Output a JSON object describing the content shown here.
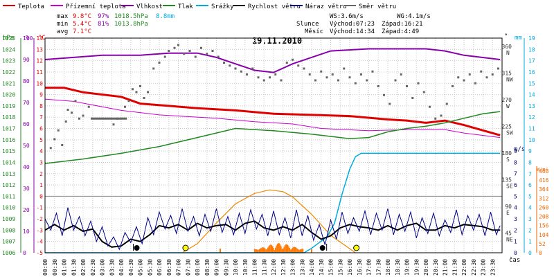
{
  "chart_data": {
    "type": "line",
    "title": "19.11.2010",
    "legend": [
      {
        "label": "Teplota",
        "color": "#e00000"
      },
      {
        "label": "Přízemní teplota",
        "color": "#cc00cc"
      },
      {
        "label": "Vlhkost",
        "color": "#8800aa"
      },
      {
        "label": "Tlak",
        "color": "#228822"
      },
      {
        "label": "Srážky",
        "color": "#00aadd"
      },
      {
        "label": "Rychlost větru",
        "color": "#000000"
      },
      {
        "label": "Náraz větru",
        "color": "#000088"
      },
      {
        "label": "Směr větru",
        "color": "#666666"
      }
    ],
    "stats": {
      "max": {
        "label": "max",
        "temp": "9.8°C",
        "hum": "97%",
        "press": "1018.5hPa",
        "rain": "8.8mm"
      },
      "min": {
        "label": "min",
        "temp": "5.4°C",
        "hum": "81%",
        "press": "1013.8hPa"
      },
      "avg": {
        "label": "avg",
        "temp": "7.1°C"
      },
      "ws": "WS:3.6m/s",
      "wg": "WG:4.1m/s",
      "sun": {
        "label": "Slunce",
        "rise": "Východ:07:23",
        "set": "Západ:16:21"
      },
      "moon": {
        "label": "Měsíc",
        "rise": "Východ:14:34",
        "set": "Západ:4:49"
      }
    },
    "axes": {
      "hpa": {
        "unit": "hPa",
        "range": [
          1006,
          1025
        ],
        "color": "#228822"
      },
      "pct": {
        "unit": "%",
        "range": [
          0,
          100
        ],
        "color": "#8800aa"
      },
      "temp": {
        "unit": "°C",
        "range": [
          -5,
          14
        ],
        "color": "#e00000"
      },
      "dir": {
        "unit": "°",
        "ticks": [
          {
            "deg": "360",
            "name": "N"
          },
          {
            "deg": "315",
            "name": "NW"
          },
          {
            "deg": "270",
            "name": "W"
          },
          {
            "deg": "225",
            "name": "SW"
          },
          {
            "deg": "180",
            "name": "S"
          },
          {
            "deg": "135",
            "name": "SE"
          },
          {
            "deg": "90",
            "name": "E"
          },
          {
            "deg": "45",
            "name": "NE"
          }
        ]
      },
      "mm": {
        "unit": "mm",
        "range": [
          0,
          19
        ],
        "color": "#00aadd"
      },
      "ms": {
        "unit": "m/s",
        "range": [
          0,
          9
        ],
        "color": "#000066"
      },
      "wm2": {
        "unit": "W/m²",
        "ticks": [
          468,
          416,
          364,
          312,
          260,
          208,
          156,
          104,
          52,
          0
        ],
        "color": "#ee6600"
      },
      "x": {
        "label": "čas"
      }
    },
    "time_labels": [
      "00:00",
      "00:30",
      "01:00",
      "01:30",
      "02:00",
      "02:30",
      "03:00",
      "03:30",
      "04:00",
      "04:30",
      "05:00",
      "05:30",
      "06:00",
      "06:30",
      "07:00",
      "07:30",
      "08:00",
      "08:30",
      "09:00",
      "09:30",
      "10:00",
      "10:30",
      "11:00",
      "11:30",
      "12:00",
      "12:30",
      "13:00",
      "13:30",
      "14:00",
      "14:30",
      "15:00",
      "15:30",
      "16:00",
      "16:30",
      "17:00",
      "17:30",
      "18:00",
      "18:30",
      "19:00",
      "19:30",
      "20:00",
      "20:30",
      "21:00",
      "21:30",
      "22:00",
      "22:30",
      "23:00",
      "23:30"
    ],
    "series": [
      {
        "name": "Teplota",
        "axis": "temp",
        "x": [
          0,
          1,
          2,
          4,
          5,
          8,
          10,
          12,
          14,
          16,
          18,
          19,
          20,
          21,
          22,
          23.9
        ],
        "values": [
          9.6,
          9.6,
          9.2,
          8.8,
          8.2,
          7.8,
          7.6,
          7.3,
          7.2,
          7.1,
          6.8,
          6.7,
          6.5,
          6.7,
          6.3,
          5.4
        ]
      },
      {
        "name": "Přízemní teplota",
        "axis": "temp",
        "x": [
          0,
          1.5,
          4,
          6,
          9,
          11,
          13,
          14.5,
          17,
          19,
          21,
          22,
          23.9
        ],
        "values": [
          8.6,
          8.4,
          7.6,
          7.2,
          6.9,
          6.6,
          6.4,
          6.0,
          5.8,
          5.9,
          5.9,
          5.6,
          5.2
        ]
      },
      {
        "name": "Vlhkost",
        "axis": "pct",
        "x": [
          0,
          1.5,
          3,
          5,
          6.5,
          8,
          9,
          10,
          11,
          12,
          13,
          15,
          17,
          19,
          20,
          21,
          22,
          23.9
        ],
        "values": [
          90,
          91,
          92,
          92,
          93,
          93,
          91,
          88,
          85,
          84,
          88,
          94,
          95,
          95,
          95,
          94,
          92,
          90
        ]
      },
      {
        "name": "Tlak",
        "axis": "hpa",
        "x": [
          0,
          2,
          4,
          6,
          8,
          10,
          12,
          14,
          16,
          17,
          18,
          19,
          20,
          21,
          22,
          23,
          23.9
        ],
        "values": [
          1013.9,
          1014.3,
          1014.8,
          1015.4,
          1016.2,
          1017.0,
          1016.8,
          1016.5,
          1016.1,
          1016.2,
          1016.7,
          1017.0,
          1017.2,
          1017.5,
          1017.9,
          1018.3,
          1018.5
        ]
      },
      {
        "name": "Srážky",
        "axis": "mm",
        "x": [
          0,
          13.6,
          14,
          14.4,
          14.8,
          15.2,
          15.6,
          16,
          16.3,
          16.6,
          23.9
        ],
        "values": [
          0,
          0,
          0.4,
          0.9,
          1.4,
          2.6,
          5.2,
          7.4,
          8.5,
          8.8,
          8.8
        ]
      },
      {
        "name": "Slunce",
        "axis": "wm2",
        "x": [
          7.2,
          8,
          9,
          10,
          11,
          11.8,
          12.5,
          13,
          14,
          15,
          16.3
        ],
        "values": [
          0,
          52,
          170,
          280,
          340,
          360,
          350,
          320,
          220,
          100,
          0
        ]
      },
      {
        "name": "Rychlost větru",
        "axis": "ms",
        "x": [
          0,
          0.5,
          1,
          1.5,
          2,
          2.5,
          3,
          3.5,
          4,
          4.5,
          5,
          5.5,
          6,
          6.5,
          7,
          7.5,
          8,
          8.5,
          9,
          9.5,
          10,
          10.5,
          11,
          11.5,
          12,
          12.5,
          13,
          13.5,
          14,
          14.5,
          15,
          15.5,
          16,
          16.5,
          17,
          17.5,
          18,
          18.5,
          19,
          19.5,
          20,
          20.5,
          21,
          21.5,
          22,
          22.5,
          23,
          23.5,
          23.9
        ],
        "values": [
          2,
          2.5,
          2,
          2.4,
          1.9,
          2.1,
          1,
          0.5,
          0.6,
          1.2,
          1.0,
          1.6,
          2.4,
          2.2,
          2.5,
          2.0,
          2.6,
          2.2,
          2.4,
          2.5,
          2.0,
          2.6,
          2.8,
          2.2,
          2.0,
          2.3,
          2.0,
          2.5,
          1.8,
          1.2,
          1.5,
          2.2,
          2.5,
          2.3,
          2.2,
          2.0,
          2.4,
          2.0,
          2.4,
          2.6,
          2.0,
          2.0,
          2.4,
          2.2,
          2.5,
          2.4,
          2.3,
          2.0,
          2.0
        ]
      },
      {
        "name": "Náraz větru",
        "axis": "ms",
        "x": [
          0,
          0.3,
          0.6,
          0.9,
          1.2,
          1.5,
          1.8,
          2.1,
          2.4,
          2.7,
          3,
          3.3,
          3.6,
          3.9,
          4.2,
          4.5,
          4.8,
          5.1,
          5.4,
          5.7,
          6,
          6.3,
          6.6,
          6.9,
          7.2,
          7.5,
          7.8,
          8.1,
          8.4,
          8.7,
          9,
          9.3,
          9.6,
          9.9,
          10.2,
          10.5,
          10.8,
          11.1,
          11.4,
          11.7,
          12,
          12.3,
          12.6,
          12.9,
          13.2,
          13.5,
          13.8,
          14.1,
          14.4,
          14.7,
          15,
          15.3,
          15.6,
          15.9,
          16.2,
          16.5,
          16.8,
          17.1,
          17.4,
          17.7,
          18,
          18.3,
          18.6,
          18.9,
          19.2,
          19.5,
          19.8,
          20.1,
          20.4,
          20.7,
          21,
          21.3,
          21.6,
          21.9,
          22.2,
          22.5,
          22.8,
          23.1,
          23.4,
          23.7,
          23.9
        ],
        "values": [
          3,
          2,
          3.5,
          1.5,
          4,
          2,
          3.2,
          1.5,
          2.8,
          1,
          2.3,
          0.6,
          1.4,
          0.3,
          1.8,
          0.9,
          2.3,
          0.8,
          3.1,
          1.6,
          3.6,
          2.1,
          3.3,
          1.7,
          3.9,
          1.9,
          3.2,
          1.5,
          3.4,
          1.9,
          3.9,
          1.8,
          3.2,
          1.6,
          3.5,
          1.7,
          3.8,
          2.1,
          3.4,
          1.5,
          3.7,
          1.6,
          3.1,
          1.3,
          3.8,
          1.5,
          3.3,
          1.1,
          2.5,
          0.7,
          2.9,
          1.2,
          3.6,
          1.7,
          3.1,
          1.9,
          3.7,
          1.6,
          3.5,
          2.0,
          3.9,
          1.6,
          3.4,
          1.9,
          3.6,
          1.3,
          3.1,
          1.7,
          3.5,
          1.5,
          2.9,
          1.8,
          3.8,
          1.6,
          3.3,
          2.0,
          3.4,
          1.5,
          3.6,
          1.6,
          2.4
        ]
      }
    ],
    "wind_dir_points": {
      "axis": "dir",
      "data": [
        [
          0.3,
          185
        ],
        [
          0.5,
          200
        ],
        [
          0.7,
          215
        ],
        [
          0.9,
          190
        ],
        [
          1.1,
          230
        ],
        [
          1.2,
          250
        ],
        [
          1.4,
          245
        ],
        [
          1.6,
          265
        ],
        [
          1.8,
          235
        ],
        [
          2.0,
          240
        ],
        [
          2.3,
          255
        ],
        [
          3.6,
          225
        ],
        [
          3.8,
          235
        ],
        [
          4.2,
          255
        ],
        [
          4.4,
          265
        ],
        [
          4.6,
          285
        ],
        [
          4.8,
          280
        ],
        [
          5.0,
          290
        ],
        [
          5.2,
          270
        ],
        [
          5.4,
          280
        ],
        [
          5.7,
          320
        ],
        [
          6.0,
          330
        ],
        [
          6.3,
          340
        ],
        [
          6.5,
          350
        ],
        [
          6.8,
          355
        ],
        [
          7.0,
          360
        ],
        [
          7.3,
          345
        ],
        [
          7.6,
          350
        ],
        [
          7.9,
          340
        ],
        [
          8.2,
          355
        ],
        [
          8.5,
          345
        ],
        [
          8.8,
          350
        ],
        [
          9.1,
          340
        ],
        [
          9.4,
          330
        ],
        [
          9.7,
          325
        ],
        [
          10.0,
          320
        ],
        [
          10.3,
          315
        ],
        [
          10.6,
          310
        ],
        [
          10.9,
          320
        ],
        [
          11.2,
          305
        ],
        [
          11.5,
          300
        ],
        [
          11.8,
          305
        ],
        [
          12.1,
          310
        ],
        [
          12.4,
          300
        ],
        [
          12.7,
          330
        ],
        [
          13.0,
          335
        ],
        [
          13.3,
          325
        ],
        [
          13.6,
          320
        ],
        [
          13.9,
          310
        ],
        [
          14.2,
          300
        ],
        [
          14.5,
          315
        ],
        [
          14.8,
          305
        ],
        [
          15.1,
          310
        ],
        [
          15.4,
          300
        ],
        [
          15.7,
          320
        ],
        [
          16.0,
          305
        ],
        [
          16.3,
          295
        ],
        [
          16.6,
          310
        ],
        [
          16.9,
          300
        ],
        [
          17.2,
          315
        ],
        [
          17.5,
          290
        ],
        [
          17.8,
          275
        ],
        [
          18.1,
          260
        ],
        [
          18.4,
          300
        ],
        [
          18.7,
          310
        ],
        [
          19.0,
          290
        ],
        [
          19.3,
          270
        ],
        [
          19.6,
          295
        ],
        [
          19.9,
          280
        ],
        [
          20.2,
          255
        ],
        [
          20.5,
          235
        ],
        [
          20.8,
          240
        ],
        [
          21.1,
          260
        ],
        [
          21.4,
          290
        ],
        [
          21.7,
          305
        ],
        [
          22.0,
          300
        ],
        [
          22.3,
          310
        ],
        [
          22.6,
          295
        ],
        [
          22.9,
          315
        ],
        [
          23.2,
          305
        ],
        [
          23.5,
          310
        ],
        [
          23.8,
          320
        ]
      ],
      "flat": [
        [
          2.4,
          235
        ],
        [
          4.3,
          235
        ]
      ]
    },
    "markers": {
      "sunrise": {
        "x": 7.38,
        "icon": "sunrise-icon"
      },
      "sunset": {
        "x": 16.35,
        "icon": "sunset-icon"
      },
      "moonset": {
        "x": 4.82,
        "icon": "moonset-icon"
      },
      "moonrise": {
        "x": 14.57,
        "icon": "moonrise-icon"
      }
    },
    "colors": {
      "background": "#ffffff",
      "grid": "#c8c8c8",
      "frame": "#000000"
    }
  }
}
